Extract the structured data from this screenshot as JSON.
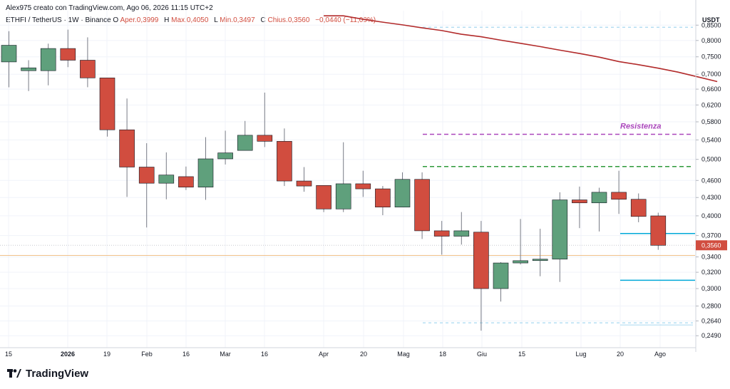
{
  "header": {
    "author_line": "Alex975 creato con TradingView.com, Ago 06, 2026 11:15 UTC+2"
  },
  "symbol_line": {
    "symbol": "ETHFI / TetherUS · 1W · Binance",
    "open_label": "O",
    "open_value": "Aper.0,3999",
    "high_label": "H",
    "high_value": "Max.0,4050",
    "low_label": "L",
    "low_value": "Min.0,3497",
    "close_label": "C",
    "close_value": "Chius.0,3560",
    "change": "−0,0440 (−11,00%)"
  },
  "currency": "USDT",
  "footer": {
    "brand": "TradingView"
  },
  "colors": {
    "up": "#5fa07c",
    "down": "#d14d3f",
    "ma": "#b22b2b",
    "resistance": "#ab47bc",
    "green_dash": "#2e9a3a",
    "light_blue": "#a7d8f0",
    "cyan": "#00a8d8",
    "orange_line": "#f0c08a",
    "grid": "#f0f3fa"
  },
  "chart_data": {
    "type": "candlestick",
    "y_scale": "log",
    "ylim": [
      0.2375,
      0.9
    ],
    "y_ticks": [
      "0,8500",
      "0,8000",
      "0,7500",
      "0,7000",
      "0,6600",
      "0,6200",
      "0,5800",
      "0,5400",
      "0,5000",
      "0,4600",
      "0,4300",
      "0,4000",
      "0,3700",
      "0,3400",
      "0,3200",
      "0,3000",
      "0,2800",
      "0,2640",
      "0,2490"
    ],
    "x_ticks": [
      "15",
      "2026",
      "19",
      "Feb",
      "16",
      "Mar",
      "16",
      "Apr",
      "20",
      "Mag",
      "18",
      "Giu",
      "15",
      "Lug",
      "20",
      "Ago"
    ],
    "last_price_label": "0,3560",
    "annotations": [
      {
        "text": "Resistenza"
      }
    ],
    "candles": [
      {
        "o": 0.735,
        "h": 0.83,
        "l": 0.665,
        "c": 0.785
      },
      {
        "o": 0.71,
        "h": 0.74,
        "l": 0.655,
        "c": 0.718
      },
      {
        "o": 0.71,
        "h": 0.79,
        "l": 0.67,
        "c": 0.775
      },
      {
        "o": 0.775,
        "h": 0.835,
        "l": 0.72,
        "c": 0.74
      },
      {
        "o": 0.74,
        "h": 0.81,
        "l": 0.665,
        "c": 0.69
      },
      {
        "o": 0.69,
        "h": 0.69,
        "l": 0.547,
        "c": 0.562
      },
      {
        "o": 0.562,
        "h": 0.636,
        "l": 0.431,
        "c": 0.485
      },
      {
        "o": 0.485,
        "h": 0.533,
        "l": 0.382,
        "c": 0.455
      },
      {
        "o": 0.455,
        "h": 0.514,
        "l": 0.427,
        "c": 0.47
      },
      {
        "o": 0.467,
        "h": 0.486,
        "l": 0.443,
        "c": 0.448
      },
      {
        "o": 0.448,
        "h": 0.546,
        "l": 0.426,
        "c": 0.501
      },
      {
        "o": 0.501,
        "h": 0.56,
        "l": 0.49,
        "c": 0.513
      },
      {
        "o": 0.518,
        "h": 0.582,
        "l": 0.518,
        "c": 0.55
      },
      {
        "o": 0.55,
        "h": 0.651,
        "l": 0.525,
        "c": 0.537
      },
      {
        "o": 0.537,
        "h": 0.565,
        "l": 0.45,
        "c": 0.459
      },
      {
        "o": 0.459,
        "h": 0.485,
        "l": 0.44,
        "c": 0.45
      },
      {
        "o": 0.451,
        "h": 0.451,
        "l": 0.406,
        "c": 0.411
      },
      {
        "o": 0.411,
        "h": 0.535,
        "l": 0.406,
        "c": 0.454
      },
      {
        "o": 0.454,
        "h": 0.478,
        "l": 0.431,
        "c": 0.445
      },
      {
        "o": 0.445,
        "h": 0.45,
        "l": 0.401,
        "c": 0.414
      },
      {
        "o": 0.414,
        "h": 0.475,
        "l": 0.414,
        "c": 0.462
      },
      {
        "o": 0.462,
        "h": 0.475,
        "l": 0.365,
        "c": 0.377
      },
      {
        "o": 0.377,
        "h": 0.392,
        "l": 0.343,
        "c": 0.369
      },
      {
        "o": 0.369,
        "h": 0.406,
        "l": 0.357,
        "c": 0.377
      },
      {
        "o": 0.375,
        "h": 0.392,
        "l": 0.254,
        "c": 0.3
      },
      {
        "o": 0.3,
        "h": 0.333,
        "l": 0.285,
        "c": 0.332
      },
      {
        "o": 0.332,
        "h": 0.395,
        "l": 0.33,
        "c": 0.335
      },
      {
        "o": 0.336,
        "h": 0.38,
        "l": 0.315,
        "c": 0.337
      },
      {
        "o": 0.337,
        "h": 0.439,
        "l": 0.308,
        "c": 0.426
      },
      {
        "o": 0.426,
        "h": 0.449,
        "l": 0.381,
        "c": 0.421
      },
      {
        "o": 0.421,
        "h": 0.447,
        "l": 0.376,
        "c": 0.439
      },
      {
        "o": 0.439,
        "h": 0.478,
        "l": 0.403,
        "c": 0.427
      },
      {
        "o": 0.427,
        "h": 0.437,
        "l": 0.39,
        "c": 0.399
      },
      {
        "o": 0.3999,
        "h": 0.405,
        "l": 0.3497,
        "c": 0.356
      }
    ],
    "moving_average": [
      0.882,
      0.882,
      0.87,
      0.86,
      0.851,
      0.841,
      0.832,
      0.82,
      0.812,
      0.801,
      0.791,
      0.781,
      0.77,
      0.76,
      0.749,
      0.736,
      0.727,
      0.717,
      0.706,
      0.693,
      0.68
    ],
    "levels": {
      "resistance": 0.552,
      "green_dashed": 0.486,
      "upper_dotted": 0.843,
      "lower_dotted": 0.262,
      "cyan_upper": 0.373,
      "cyan_lower": 0.31,
      "orange": 0.342,
      "last_dotted": 0.356
    }
  }
}
